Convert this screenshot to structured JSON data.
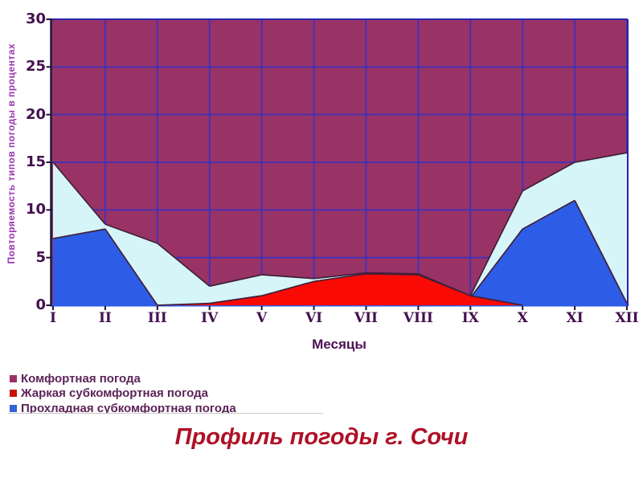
{
  "style": {
    "plot_bg": "#993366",
    "grid_color": "#3a30be",
    "frame_color": "#2b22a8",
    "axis_left_color": "#1a1a3c",
    "axis_bottom_color": "#2d5ce6",
    "series_line_color": "#40203a",
    "tick_color": "#2a1030",
    "tick_label_color": "#43104f",
    "y_axis_title_color": "#9a35b0",
    "legend_text_color": "#5c2458",
    "title_color": "#ae1126"
  },
  "legend": {
    "items": [
      {
        "label": "Комфортная погода",
        "color": "#993366"
      },
      {
        "label": "Жаркая субкомфортная погода",
        "color": "#c9100d"
      },
      {
        "label": "Прохладная субкомфортная погода",
        "color": "#2f64d6"
      }
    ],
    "third_item_clipped": true
  },
  "chart_data": {
    "type": "area",
    "title": "Профиль погоды г. Сочи",
    "xlabel": "Месяцы",
    "ylabel": "Повторяемость типов погоды в процентах",
    "categories": [
      "I",
      "II",
      "III",
      "IV",
      "V",
      "VI",
      "VII",
      "VIII",
      "IX",
      "X",
      "XI",
      "XII"
    ],
    "ylim": [
      0,
      30
    ],
    "ytick_step": 5,
    "grid": true,
    "legend_position": "bottom-left",
    "series": [
      {
        "id": "comfort",
        "name": "Комфортная погода",
        "color": "#993366",
        "fill_to_top": true
      },
      {
        "id": "hot",
        "name": "Жаркая субкомфортная погода",
        "color": "#fa0a05",
        "values": [
          0,
          0,
          0,
          0.2,
          1,
          2.5,
          3.3,
          3.2,
          1,
          0,
          0,
          0
        ]
      },
      {
        "id": "cool",
        "name": "Прохладная субкомфортная погода",
        "color": "#2d5ce6",
        "values": [
          7,
          8,
          0,
          0,
          0,
          0,
          0,
          0,
          0.8,
          8,
          11,
          0.2
        ]
      },
      {
        "id": "unlabeled-light",
        "name": "",
        "color": "#d6f5f9",
        "values": [
          15,
          8.5,
          6.5,
          2,
          3.2,
          2.8,
          3.4,
          3.3,
          1,
          12,
          15,
          16
        ]
      }
    ]
  }
}
